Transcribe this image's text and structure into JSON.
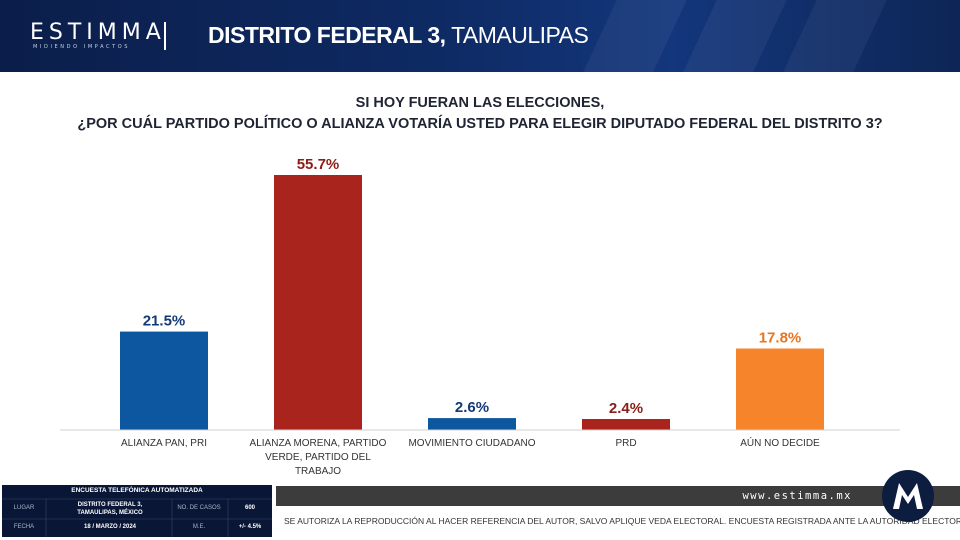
{
  "header": {
    "logo_text": "ESTIMMA",
    "logo_tagline": "MIDIENDO IMPACTOS",
    "title_bold": "DISTRITO FEDERAL 3,",
    "title_regular": "TAMAULIPAS"
  },
  "question": {
    "line1": "SI HOY FUERAN LAS ELECCIONES,",
    "line2": "¿POR CUÁL PARTIDO POLÍTICO O ALIANZA VOTARÍA USTED PARA ELEGIR DIPUTADO FEDERAL DEL DISTRITO 3?"
  },
  "chart_data": {
    "type": "bar",
    "title": "",
    "xlabel": "",
    "ylabel": "",
    "ylim": [
      0,
      60
    ],
    "grid": false,
    "categories": [
      [
        "ALIANZA PAN, PRI"
      ],
      [
        "ALIANZA MORENA, PARTIDO",
        "VERDE, PARTIDO DEL",
        "TRABAJO"
      ],
      [
        "MOVIMIENTO CIUDADANO"
      ],
      [
        "PRD"
      ],
      [
        "AÚN NO DECIDE"
      ]
    ],
    "values": [
      21.5,
      55.7,
      2.6,
      2.4,
      17.8
    ],
    "data_labels": [
      "21.5%",
      "55.7%",
      "2.6%",
      "2.4%",
      "17.8%"
    ],
    "colors": [
      "#0d56a0",
      "#a8241d",
      "#0d56a0",
      "#a8241d",
      "#f5842a"
    ],
    "label_colors": [
      "#123a78",
      "#8a1e17",
      "#123a78",
      "#8a1e17",
      "#e87420"
    ]
  },
  "footer": {
    "url": "www.estimma.mx",
    "note": "SE AUTORIZA LA REPRODUCCIÓN AL HACER REFERENCIA DEL AUTOR,  SALVO APLIQUE VEDA ELECTORAL. ENCUESTA REGISTRADA ANTE LA AUTORIDAD ELECTORAL"
  },
  "info_box": {
    "title": "ENCUESTA TELEFÓNICA AUTOMATIZADA",
    "lugar_label": "LUGAR",
    "lugar_value_1": "DISTRITO FEDERAL 3,",
    "lugar_value_2": "TAMAULIPAS, MÉXICO",
    "casos_label": "NO. DE CASOS",
    "casos_value": "600",
    "fecha_label": "FECHA",
    "fecha_value": "18 / MARZO / 2024",
    "me_label": "M.E.",
    "me_value": "+/- 4.5%"
  }
}
